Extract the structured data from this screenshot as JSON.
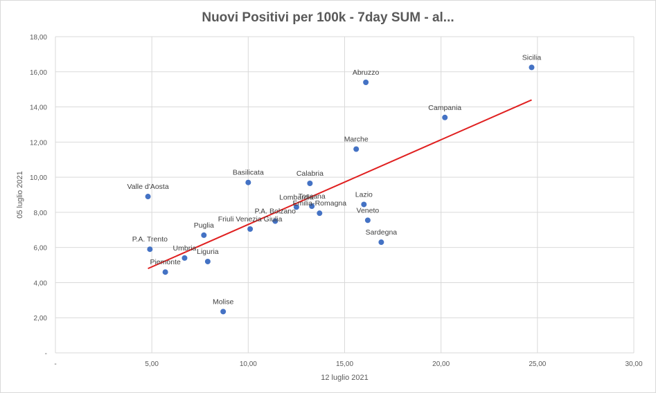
{
  "chart_data": {
    "type": "scatter",
    "title": "Nuovi Positivi per 100k - 7day SUM  - al...",
    "xlabel": "12 luglio 2021",
    "ylabel": "05 luglio 2021",
    "xlim": [
      0,
      30
    ],
    "ylim": [
      0,
      18
    ],
    "x_ticks": [
      "-",
      "5,00",
      "10,00",
      "15,00",
      "20,00",
      "25,00",
      "30,00"
    ],
    "y_ticks": [
      "-",
      "2,00",
      "4,00",
      "6,00",
      "8,00",
      "10,00",
      "12,00",
      "14,00",
      "16,00",
      "18,00"
    ],
    "x_tick_values": [
      0,
      5,
      10,
      15,
      20,
      25,
      30
    ],
    "y_tick_values": [
      0,
      2,
      4,
      6,
      8,
      10,
      12,
      14,
      16,
      18
    ],
    "grid": true,
    "marker_color": "#4472c4",
    "trendline_color": "#e02020",
    "trendline": {
      "x": [
        4.8,
        24.7
      ],
      "y": [
        4.8,
        14.4
      ]
    },
    "points": [
      {
        "label": "Sicilia",
        "x": 24.7,
        "y": 16.25
      },
      {
        "label": "Abruzzo",
        "x": 16.1,
        "y": 15.4
      },
      {
        "label": "Campania",
        "x": 20.2,
        "y": 13.4
      },
      {
        "label": "Marche",
        "x": 15.6,
        "y": 11.6
      },
      {
        "label": "Basilicata",
        "x": 10.0,
        "y": 9.7
      },
      {
        "label": "Calabria",
        "x": 13.2,
        "y": 9.65
      },
      {
        "label": "Valle d'Aosta",
        "x": 4.8,
        "y": 8.9
      },
      {
        "label": "Lazio",
        "x": 16.0,
        "y": 8.45
      },
      {
        "label": "Lombardia",
        "x": 12.5,
        "y": 8.3
      },
      {
        "label": "Toscana",
        "x": 13.3,
        "y": 8.35
      },
      {
        "label": "Emilia-Romagna",
        "x": 13.7,
        "y": 7.95
      },
      {
        "label": "P.A. Bolzano",
        "x": 11.4,
        "y": 7.5
      },
      {
        "label": "Veneto",
        "x": 16.2,
        "y": 7.55
      },
      {
        "label": "Friuli Venezia Giulia",
        "x": 10.1,
        "y": 7.05
      },
      {
        "label": "Puglia",
        "x": 7.7,
        "y": 6.7
      },
      {
        "label": "Sardegna",
        "x": 16.9,
        "y": 6.3
      },
      {
        "label": "P.A. Trento",
        "x": 4.9,
        "y": 5.9
      },
      {
        "label": "Umbria",
        "x": 6.7,
        "y": 5.4
      },
      {
        "label": "Liguria",
        "x": 7.9,
        "y": 5.2
      },
      {
        "label": "Piemonte",
        "x": 5.7,
        "y": 4.6
      },
      {
        "label": "Molise",
        "x": 8.7,
        "y": 2.35
      }
    ]
  }
}
